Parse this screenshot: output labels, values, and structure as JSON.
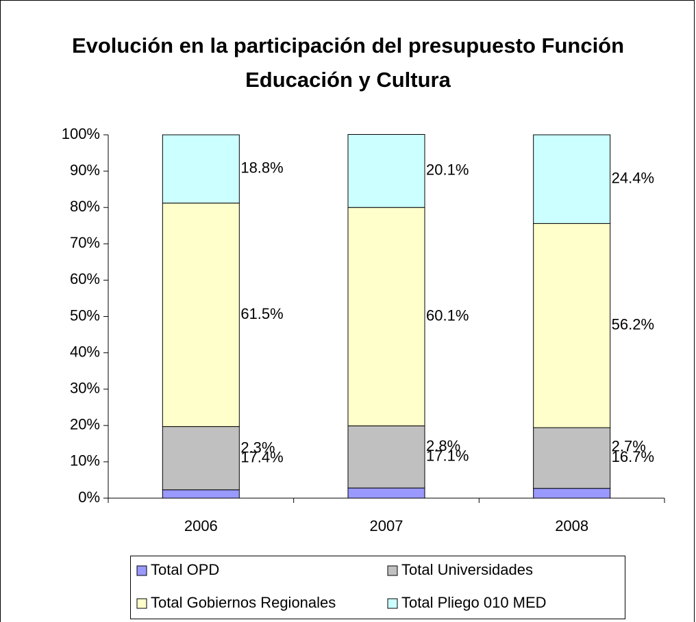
{
  "chart_data": {
    "type": "stacked_bar",
    "title": "Evolución en la participación del presupuesto Función Educación y Cultura",
    "categories": [
      "2006",
      "2007",
      "2008"
    ],
    "series": [
      {
        "name": "Total OPD",
        "color": "#9999ff",
        "values": [
          2.3,
          2.8,
          2.7
        ],
        "value_labels": [
          "2.3%",
          "2.8%",
          "2.7%"
        ]
      },
      {
        "name": "Total Universidades",
        "color": "#c0c0c0",
        "values": [
          17.4,
          17.1,
          16.7
        ],
        "value_labels": [
          "17.4%",
          "17.1%",
          "16.7%"
        ]
      },
      {
        "name": "Total Gobiernos Regionales",
        "color": "#ffffcc",
        "values": [
          61.5,
          60.1,
          56.2
        ],
        "value_labels": [
          "61.5%",
          "60.1%",
          "56.2%"
        ]
      },
      {
        "name": "Total Pliego 010 MED",
        "color": "#ccffff",
        "values": [
          18.8,
          20.1,
          24.4
        ],
        "value_labels": [
          "18.8%",
          "20.1%",
          "24.4%"
        ]
      }
    ],
    "ylim": [
      0,
      100
    ],
    "yticks": [
      {
        "value": 0,
        "label": "0%"
      },
      {
        "value": 10,
        "label": "10%"
      },
      {
        "value": 20,
        "label": "20%"
      },
      {
        "value": 30,
        "label": "30%"
      },
      {
        "value": 40,
        "label": "40%"
      },
      {
        "value": 50,
        "label": "50%"
      },
      {
        "value": 60,
        "label": "60%"
      },
      {
        "value": 70,
        "label": "70%"
      },
      {
        "value": 80,
        "label": "80%"
      },
      {
        "value": 90,
        "label": "90%"
      },
      {
        "value": 100,
        "label": "100%"
      }
    ],
    "legend": "bottom"
  }
}
